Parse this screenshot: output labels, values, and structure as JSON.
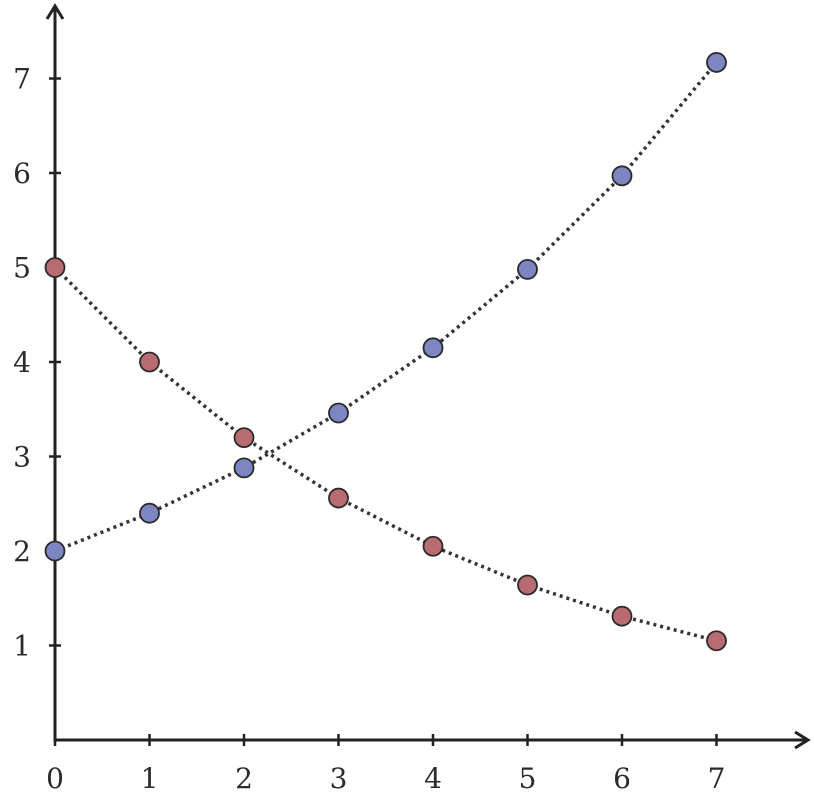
{
  "chart_data": {
    "type": "line",
    "title": "",
    "xlabel": "",
    "ylabel": "",
    "xlim": [
      0,
      8
    ],
    "ylim": [
      0,
      7.8
    ],
    "x_ticks": [
      0,
      1,
      2,
      3,
      4,
      5,
      6,
      7
    ],
    "y_ticks": [
      1,
      2,
      3,
      4,
      5,
      6,
      7
    ],
    "grid": false,
    "legend": "none",
    "x": [
      0,
      1,
      2,
      3,
      4,
      5,
      6,
      7
    ],
    "series": [
      {
        "values": [
          2.0,
          2.4,
          2.88,
          3.46,
          4.15,
          4.98,
          5.97,
          7.17
        ],
        "color": "#7b86c2",
        "line_style": "dotted"
      },
      {
        "values": [
          5.0,
          4.0,
          3.2,
          2.56,
          2.05,
          1.64,
          1.31,
          1.05
        ],
        "color": "#b86b70",
        "line_style": "dotted"
      }
    ]
  }
}
